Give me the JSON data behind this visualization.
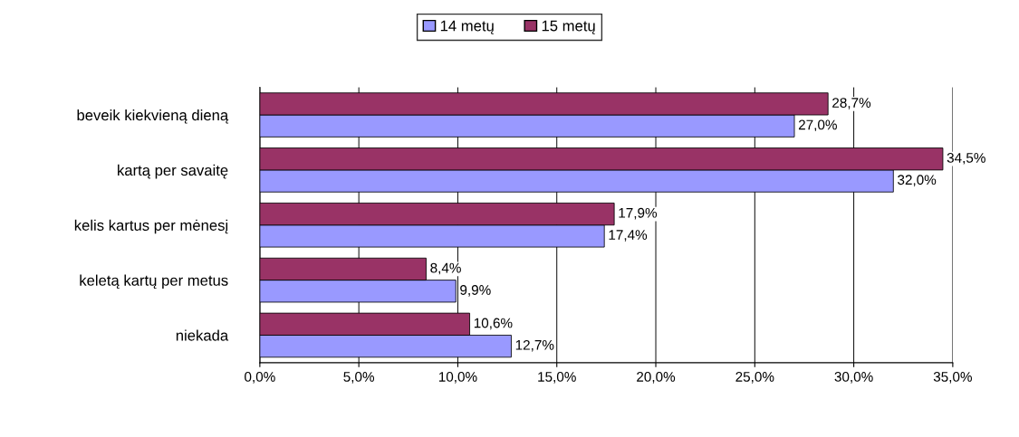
{
  "chart_data": {
    "type": "bar",
    "orientation": "horizontal",
    "categories": [
      "beveik kiekvieną dieną",
      "kartą per savaitę",
      "kelis kartus per mėnesį",
      "keletą kartų per metus",
      "niekada"
    ],
    "series": [
      {
        "name": "14 metų",
        "color": "#9999ff",
        "values": [
          27.0,
          32.0,
          17.4,
          9.9,
          12.7
        ],
        "value_labels": [
          "27,0%",
          "32,0%",
          "17,4%",
          "9,9%",
          "12,7%"
        ]
      },
      {
        "name": "15 metų",
        "color": "#993366",
        "values": [
          28.7,
          34.5,
          17.9,
          8.4,
          10.6
        ],
        "value_labels": [
          "28,7%",
          "34,5%",
          "17,9%",
          "8,4%",
          "10,6%"
        ]
      }
    ],
    "xlim": [
      0,
      35
    ],
    "xticks": [
      {
        "value": 0,
        "label": "0,0%"
      },
      {
        "value": 5,
        "label": "5,0%"
      },
      {
        "value": 10,
        "label": "10,0%"
      },
      {
        "value": 15,
        "label": "15,0%"
      },
      {
        "value": 20,
        "label": "20,0%"
      },
      {
        "value": 25,
        "label": "25,0%"
      },
      {
        "value": 30,
        "label": "30,0%"
      },
      {
        "value": 35,
        "label": "35,0%"
      }
    ],
    "grid": "x",
    "legend": "top"
  }
}
